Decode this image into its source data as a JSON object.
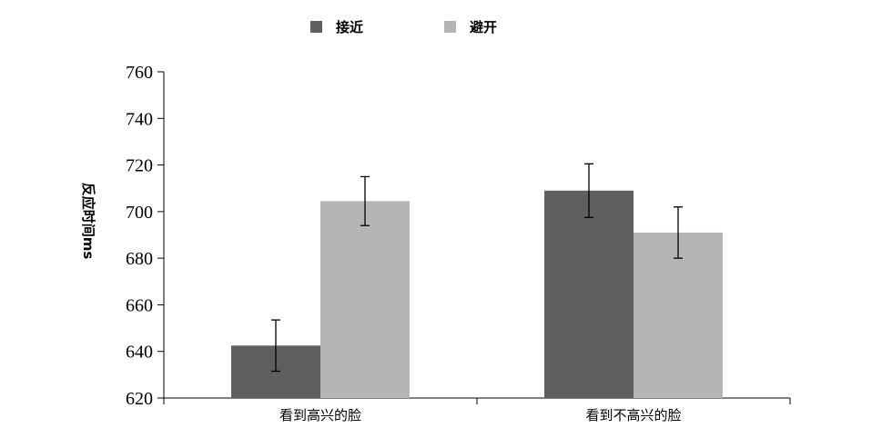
{
  "chart_data": {
    "type": "bar",
    "title": "",
    "xlabel": "",
    "ylabel": "反应时间ms",
    "ylim": [
      620,
      760
    ],
    "ytick_step": 20,
    "yticks": [
      "620",
      "640",
      "660",
      "680",
      "700",
      "720",
      "740",
      "760"
    ],
    "categories": [
      "看到高兴的脸",
      "看到不高兴的脸"
    ],
    "series": [
      {
        "name": "接近",
        "color": "#5f5f5f",
        "values": [
          642.5,
          709
        ],
        "error": [
          11,
          11.5
        ]
      },
      {
        "name": "避开",
        "color": "#b5b5b5",
        "values": [
          704.5,
          691
        ],
        "error": [
          10.5,
          11
        ]
      }
    ],
    "legend_position": "top-center",
    "grid": false,
    "error_bars": true
  }
}
